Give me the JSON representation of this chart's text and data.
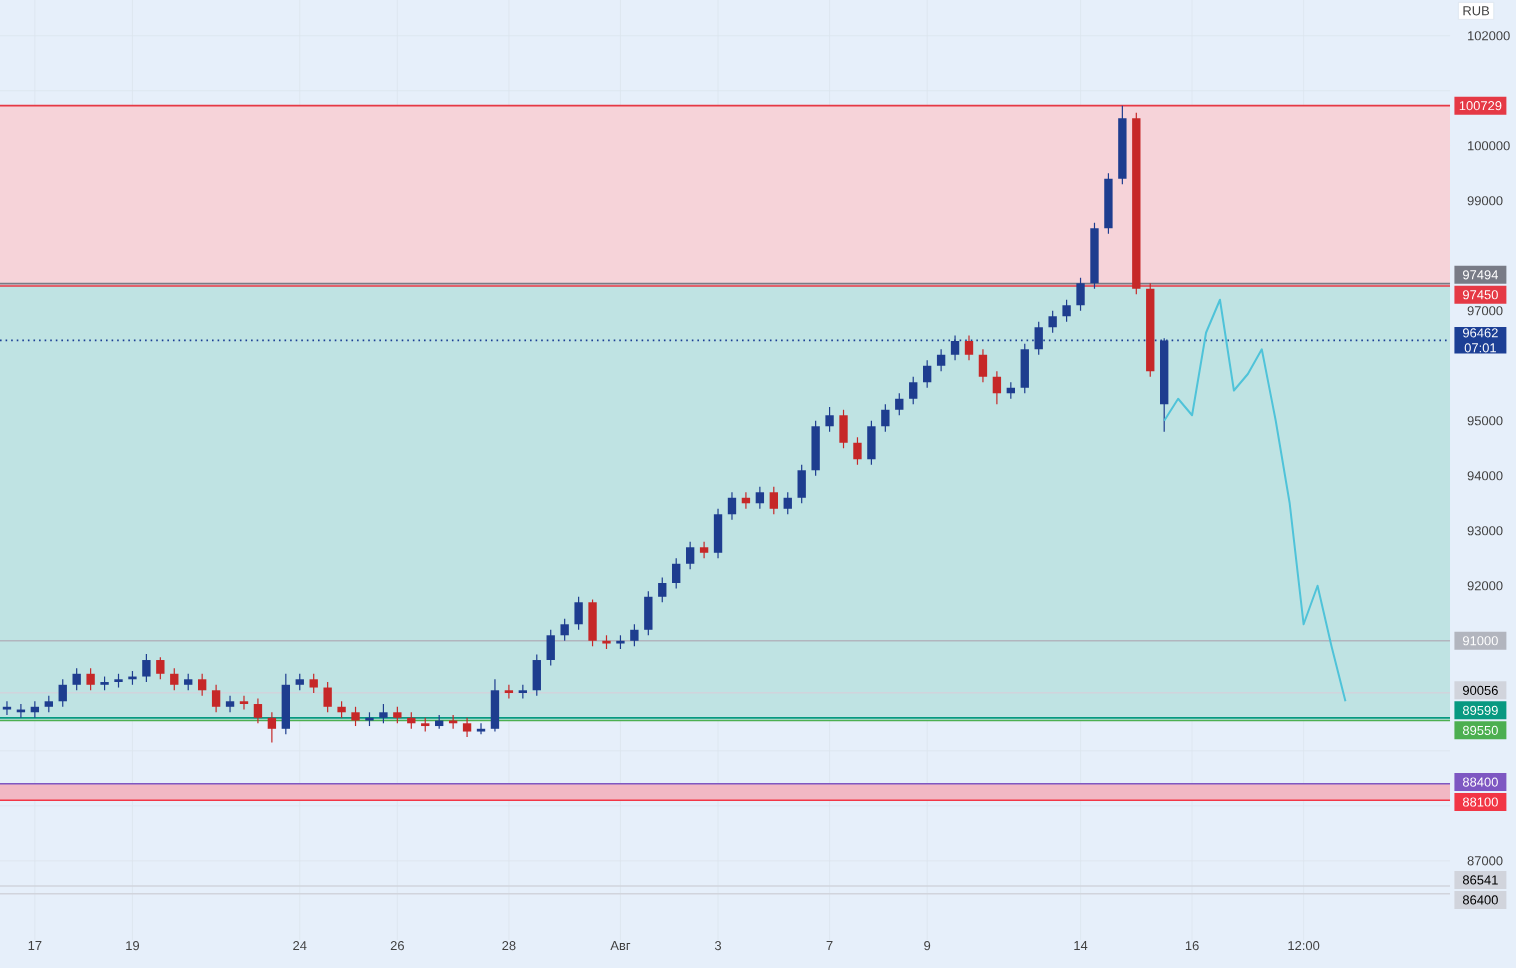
{
  "chart_data": {
    "type": "candlestick",
    "ylabel": "RUB",
    "categories": [
      null,
      null,
      "17",
      null,
      null,
      null,
      null,
      null,
      null,
      "19",
      null,
      null,
      null,
      null,
      null,
      null,
      null,
      null,
      null,
      null,
      null,
      "24",
      null,
      null,
      null,
      null,
      null,
      null,
      "26",
      null,
      null,
      null,
      null,
      null,
      null,
      null,
      "28",
      null,
      null,
      null,
      null,
      null,
      null,
      null,
      "Авг",
      null,
      null,
      null,
      null,
      null,
      null,
      "3",
      null,
      null,
      null,
      null,
      null,
      null,
      null,
      "7",
      null,
      null,
      null,
      null,
      null,
      null,
      "9",
      null,
      null,
      null,
      null,
      null,
      null,
      null,
      null,
      null,
      null,
      "14",
      null,
      null,
      null,
      null,
      null,
      null,
      null,
      "16",
      null,
      null,
      null,
      null,
      null,
      null,
      null,
      "12:00",
      null,
      null,
      null,
      null,
      null,
      null,
      null,
      null,
      null,
      null
    ],
    "colors": [
      "#1e3d8f",
      "#1e3d8f",
      "#1e3d8f",
      "#1e3d8f",
      "#1e3d8f",
      "#1e3d8f",
      "#c62828",
      "#1e3d8f",
      "#1e3d8f",
      "#1e3d8f",
      "#1e3d8f",
      "#c62828",
      "#c62828",
      "#1e3d8f",
      "#c62828",
      "#c62828",
      "#1e3d8f",
      "#c62828",
      "#c62828",
      "#c62828",
      "#1e3d8f",
      "#1e3d8f",
      "#c62828",
      "#c62828",
      "#c62828",
      "#c62828",
      "#1e3d8f",
      "#1e3d8f",
      "#c62828",
      "#c62828",
      "#c62828",
      "#1e3d8f",
      "#c62828",
      "#c62828",
      "#1e3d8f",
      "#1e3d8f",
      "#c62828",
      "#1e3d8f",
      "#1e3d8f",
      "#1e3d8f",
      "#1e3d8f",
      "#1e3d8f",
      "#c62828",
      "#c62828",
      "#1e3d8f",
      "#1e3d8f",
      "#1e3d8f",
      "#1e3d8f",
      "#1e3d8f",
      "#1e3d8f",
      "#c62828",
      "#1e3d8f",
      "#1e3d8f",
      "#c62828",
      "#1e3d8f",
      "#c62828",
      "#1e3d8f",
      "#1e3d8f",
      "#1e3d8f",
      "#1e3d8f",
      "#c62828",
      "#c62828",
      "#1e3d8f",
      "#1e3d8f",
      "#1e3d8f",
      "#1e3d8f",
      "#1e3d8f",
      "#1e3d8f",
      "#1e3d8f",
      "#c62828",
      "#c62828",
      "#c62828",
      "#1e3d8f",
      "#1e3d8f",
      "#1e3d8f",
      "#1e3d8f",
      "#1e3d8f",
      "#1e3d8f",
      "#1e3d8f",
      "#1e3d8f",
      "#1e3d8f",
      "#c62828",
      "#c62828",
      "#1e3d8f",
      null,
      null,
      null,
      null,
      null,
      null,
      null,
      null,
      null,
      null,
      null,
      null,
      null,
      null,
      null,
      null,
      null,
      null,
      null,
      null
    ],
    "ohlc": [
      [
        89800,
        89900,
        89650,
        89750
      ],
      [
        89750,
        89850,
        89600,
        89700
      ],
      [
        89700,
        89900,
        89600,
        89800
      ],
      [
        89800,
        90000,
        89700,
        89900
      ],
      [
        89900,
        90300,
        89800,
        90200
      ],
      [
        90200,
        90500,
        90100,
        90400
      ],
      [
        90400,
        90500,
        90100,
        90200
      ],
      [
        90200,
        90350,
        90100,
        90250
      ],
      [
        90250,
        90400,
        90150,
        90300
      ],
      [
        90300,
        90450,
        90200,
        90350
      ],
      [
        90350,
        90760,
        90250,
        90650
      ],
      [
        90650,
        90700,
        90300,
        90400
      ],
      [
        90400,
        90500,
        90100,
        90200
      ],
      [
        90200,
        90400,
        90100,
        90300
      ],
      [
        90300,
        90400,
        90000,
        90100
      ],
      [
        90100,
        90200,
        89700,
        89800
      ],
      [
        89800,
        90000,
        89700,
        89900
      ],
      [
        89900,
        90000,
        89750,
        89850
      ],
      [
        89850,
        89950,
        89500,
        89600
      ],
      [
        89600,
        89700,
        89150,
        89400
      ],
      [
        89400,
        90400,
        89300,
        90200
      ],
      [
        90200,
        90400,
        90100,
        90300
      ],
      [
        90300,
        90400,
        90050,
        90150
      ],
      [
        90150,
        90250,
        89700,
        89800
      ],
      [
        89800,
        89900,
        89600,
        89700
      ],
      [
        89700,
        89800,
        89450,
        89550
      ],
      [
        89550,
        89700,
        89450,
        89600
      ],
      [
        89600,
        89850,
        89500,
        89700
      ],
      [
        89700,
        89800,
        89500,
        89600
      ],
      [
        89600,
        89700,
        89400,
        89500
      ],
      [
        89500,
        89600,
        89350,
        89450
      ],
      [
        89450,
        89650,
        89400,
        89550
      ],
      [
        89550,
        89650,
        89400,
        89500
      ],
      [
        89500,
        89600,
        89250,
        89350
      ],
      [
        89350,
        89500,
        89300,
        89400
      ],
      [
        89400,
        90300,
        89350,
        90100
      ],
      [
        90100,
        90200,
        89950,
        90050
      ],
      [
        90050,
        90200,
        89950,
        90100
      ],
      [
        90100,
        90750,
        90000,
        90650
      ],
      [
        90650,
        91200,
        90550,
        91100
      ],
      [
        91100,
        91400,
        91000,
        91300
      ],
      [
        91300,
        91800,
        91200,
        91700
      ],
      [
        91700,
        91750,
        90900,
        91000
      ],
      [
        91000,
        91100,
        90850,
        90950
      ],
      [
        90950,
        91100,
        90850,
        91000
      ],
      [
        91000,
        91300,
        90900,
        91200
      ],
      [
        91200,
        91900,
        91100,
        91800
      ],
      [
        91800,
        92150,
        91700,
        92050
      ],
      [
        92050,
        92500,
        91950,
        92400
      ],
      [
        92400,
        92800,
        92300,
        92700
      ],
      [
        92700,
        92800,
        92500,
        92600
      ],
      [
        92600,
        93400,
        92500,
        93300
      ],
      [
        93300,
        93700,
        93200,
        93600
      ],
      [
        93600,
        93700,
        93400,
        93500
      ],
      [
        93500,
        93800,
        93400,
        93700
      ],
      [
        93700,
        93800,
        93300,
        93400
      ],
      [
        93400,
        93700,
        93300,
        93600
      ],
      [
        93600,
        94200,
        93500,
        94100
      ],
      [
        94100,
        95000,
        94000,
        94900
      ],
      [
        94900,
        95250,
        94800,
        95100
      ],
      [
        95100,
        95200,
        94500,
        94600
      ],
      [
        94600,
        94700,
        94200,
        94300
      ],
      [
        94300,
        95000,
        94200,
        94900
      ],
      [
        94900,
        95300,
        94800,
        95200
      ],
      [
        95200,
        95500,
        95100,
        95400
      ],
      [
        95400,
        95800,
        95300,
        95700
      ],
      [
        95700,
        96100,
        95600,
        96000
      ],
      [
        96000,
        96300,
        95900,
        96200
      ],
      [
        96200,
        96550,
        96100,
        96450
      ],
      [
        96450,
        96550,
        96100,
        96200
      ],
      [
        96200,
        96300,
        95700,
        95800
      ],
      [
        95800,
        95900,
        95300,
        95500
      ],
      [
        95500,
        95700,
        95400,
        95600
      ],
      [
        95600,
        96400,
        95500,
        96300
      ],
      [
        96300,
        96800,
        96200,
        96700
      ],
      [
        96700,
        97000,
        96600,
        96900
      ],
      [
        96900,
        97200,
        96800,
        97100
      ],
      [
        97100,
        97600,
        97000,
        97500
      ],
      [
        97500,
        98600,
        97400,
        98500
      ],
      [
        98500,
        99500,
        98400,
        99400
      ],
      [
        99400,
        100729,
        99300,
        100500
      ],
      [
        100500,
        100600,
        97300,
        97400
      ],
      [
        97400,
        97500,
        95800,
        95900
      ],
      [
        95300,
        96500,
        94800,
        96460
      ],
      null,
      null,
      null,
      null,
      null,
      null,
      null,
      null,
      null,
      null,
      null,
      null,
      null,
      null,
      null,
      null,
      null,
      null,
      null,
      null
    ],
    "series": [
      {
        "type": "line",
        "color": "#4fc3d9",
        "values": [
          null,
          null,
          null,
          null,
          null,
          null,
          null,
          null,
          null,
          null,
          null,
          null,
          null,
          null,
          null,
          null,
          null,
          null,
          null,
          null,
          null,
          null,
          null,
          null,
          null,
          null,
          null,
          null,
          null,
          null,
          null,
          null,
          null,
          null,
          null,
          null,
          null,
          null,
          null,
          null,
          null,
          null,
          null,
          null,
          null,
          null,
          null,
          null,
          null,
          null,
          null,
          null,
          null,
          null,
          null,
          null,
          null,
          null,
          null,
          null,
          null,
          null,
          null,
          null,
          null,
          null,
          null,
          null,
          null,
          null,
          null,
          null,
          null,
          null,
          null,
          null,
          null,
          null,
          null,
          null,
          null,
          null,
          null,
          95000,
          95400,
          95100,
          96600,
          97200,
          95550,
          95850,
          96300,
          95000,
          93500,
          91300,
          92000,
          90900,
          89900,
          null,
          null,
          null,
          null,
          null,
          null,
          null
        ]
      }
    ],
    "ylim": [
      85560,
      102650
    ],
    "yticks": [
      87000,
      {
        "value": 88000,
        "label": null
      },
      {
        "value": 89000,
        "label": null
      },
      {
        "value": 90000,
        "label": null
      },
      {
        "value": 91000,
        "label": null
      },
      92000,
      93000,
      94000,
      95000,
      {
        "value": 96000,
        "label": null
      },
      97000,
      {
        "value": 98000,
        "label": null
      },
      99000,
      100000,
      {
        "value": 101000,
        "label": null
      },
      102000
    ],
    "grid": true,
    "legend": "right",
    "bands": [
      {
        "axis": "y",
        "from": 97450,
        "to": 100729,
        "color": "#f6d3d9"
      },
      {
        "axis": "y",
        "from": 89550,
        "to": 97450,
        "color": "#bfe3e3"
      },
      {
        "axis": "y",
        "from": 88100,
        "to": 88400,
        "color": "#f2b8c4"
      }
    ],
    "ref_lines": [
      {
        "axis": "y",
        "value": 100729,
        "label": "100729",
        "color": "#e53945"
      },
      {
        "axis": "y",
        "value": 97494,
        "label": "97494",
        "color": "#787b86"
      },
      {
        "axis": "y",
        "value": 97450,
        "label": "97450",
        "color": "#e53945"
      },
      {
        "axis": "y",
        "value": 96462,
        "label": "96462 07:01",
        "color": "#1c3f95",
        "line_style": "dotted"
      },
      {
        "axis": "y",
        "value": 91000,
        "label": "91000",
        "color": "#b2b5be"
      },
      {
        "axis": "y",
        "value": 90056,
        "label": "90056",
        "color": "#d1d4dc"
      },
      {
        "axis": "y",
        "value": 89599,
        "label": "89599",
        "color": "#089981"
      },
      {
        "axis": "y",
        "value": 89550,
        "label": "89550",
        "color": "#4caf50"
      },
      {
        "axis": "y",
        "value": 88400,
        "label": "88400",
        "color": "#7e57c2"
      },
      {
        "axis": "y",
        "value": 88100,
        "label": "88100",
        "color": "#f23645"
      },
      {
        "axis": "y",
        "value": 86541,
        "label": "86541",
        "color": "#d1d4dc"
      },
      {
        "axis": "y",
        "value": 86400,
        "label": "86400",
        "color": "#d1d4dc"
      }
    ]
  }
}
